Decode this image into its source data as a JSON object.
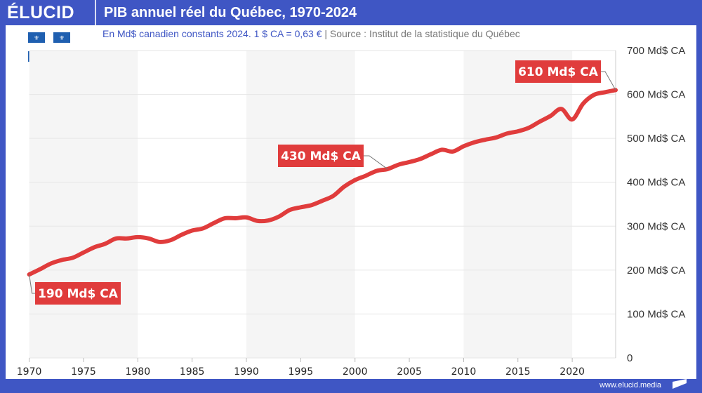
{
  "header": {
    "logo": "ÉLUCID",
    "title": "PIB annuel réel du Québec, 1970-2024"
  },
  "subtitle": {
    "main": "En Md$ canadien constants 2024. 1 $ CA = 0,63 €",
    "separator": " | ",
    "source": "Source : Institut de la statistique du Québec"
  },
  "footer": {
    "url": "www.elucid.media"
  },
  "colors": {
    "brand": "#3f56c4",
    "line": "#e03c3c",
    "label_bg": "#e03c3c",
    "band": "#f5f5f5",
    "grid": "#e6e6e6"
  },
  "chart_data": {
    "type": "line",
    "title": "PIB annuel réel du Québec, 1970-2024",
    "xlim": [
      1970,
      2024
    ],
    "ylim": [
      0,
      700
    ],
    "x_ticks": [
      1970,
      1975,
      1980,
      1985,
      1990,
      1995,
      2000,
      2005,
      2010,
      2015,
      2020
    ],
    "x_tick_labels": [
      "1970",
      "1975",
      "1980",
      "1985",
      "1990",
      "1995",
      "2000",
      "2005",
      "2010",
      "2015",
      "2020"
    ],
    "y_ticks": [
      0,
      100,
      200,
      300,
      400,
      500,
      600,
      700
    ],
    "y_tick_labels": [
      "0",
      "100 Md$ CA",
      "200 Md$ CA",
      "300 Md$ CA",
      "400 Md$ CA",
      "500 Md$ CA",
      "600 Md$ CA",
      "700 Md$ CA"
    ],
    "grid": "horizontal",
    "alternating_decade_bands": true,
    "x": [
      1970,
      1971,
      1972,
      1973,
      1974,
      1975,
      1976,
      1977,
      1978,
      1979,
      1980,
      1981,
      1982,
      1983,
      1984,
      1985,
      1986,
      1987,
      1988,
      1989,
      1990,
      1991,
      1992,
      1993,
      1994,
      1995,
      1996,
      1997,
      1998,
      1999,
      2000,
      2001,
      2002,
      2003,
      2004,
      2005,
      2006,
      2007,
      2008,
      2009,
      2010,
      2011,
      2012,
      2013,
      2014,
      2015,
      2016,
      2017,
      2018,
      2019,
      2020,
      2021,
      2022,
      2023,
      2024
    ],
    "values": [
      190,
      202,
      215,
      223,
      228,
      240,
      252,
      260,
      272,
      272,
      275,
      272,
      264,
      268,
      280,
      290,
      295,
      307,
      318,
      318,
      320,
      312,
      313,
      322,
      337,
      343,
      348,
      358,
      369,
      390,
      405,
      415,
      426,
      430,
      440,
      446,
      453,
      464,
      474,
      470,
      482,
      491,
      497,
      502,
      511,
      516,
      524,
      538,
      551,
      567,
      543,
      579,
      599,
      605,
      610
    ],
    "annotations": [
      {
        "x": 1970,
        "y": 190,
        "label": "190 Md$ CA"
      },
      {
        "x": 2003,
        "y": 430,
        "label": "430 Md$ CA"
      },
      {
        "x": 2024,
        "y": 610,
        "label": "610 Md$ CA"
      }
    ]
  }
}
